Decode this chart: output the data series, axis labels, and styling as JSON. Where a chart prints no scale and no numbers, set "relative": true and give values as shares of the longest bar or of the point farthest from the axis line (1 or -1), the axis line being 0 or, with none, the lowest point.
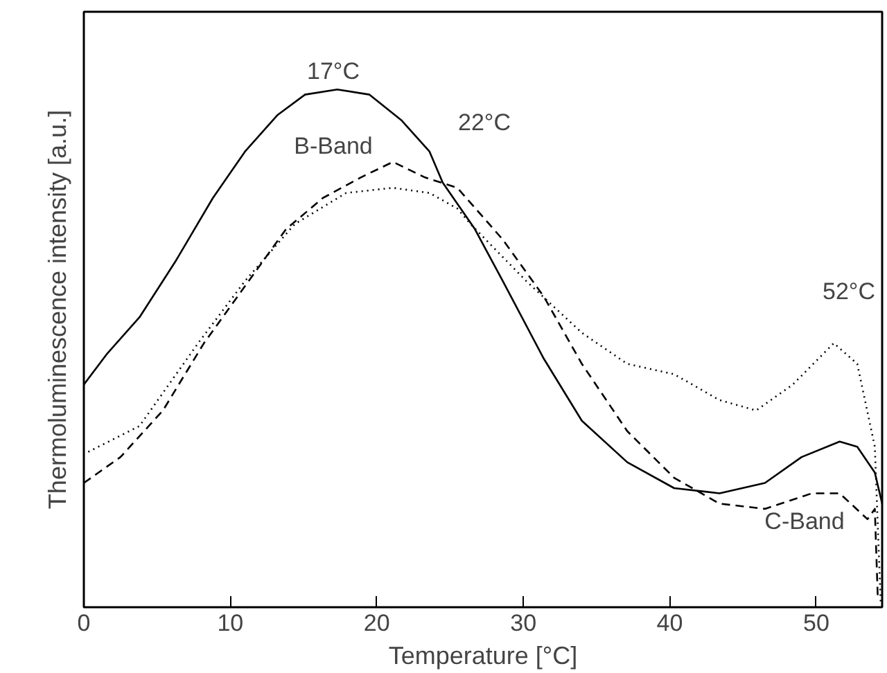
{
  "chart_data": {
    "type": "line",
    "relative": true,
    "xlabel": "Temperature [°C]",
    "ylabel": "Thermoluminescence intensity [a.u.]",
    "xlim": [
      0,
      54.5
    ],
    "xticks": [
      0,
      10,
      20,
      30,
      40,
      50
    ],
    "grid": false,
    "marker": "none",
    "series": [
      {
        "color": "#000000",
        "line_style": "solid",
        "x": [
          0,
          1.6,
          3.8,
          6.3,
          8.8,
          11,
          13.2,
          15.1,
          17.3,
          19.5,
          21.7,
          23.6,
          24.5,
          26.7,
          28.6,
          31.4,
          34,
          37.1,
          40.3,
          43.4,
          46.5,
          49,
          51.6,
          52.8,
          54,
          54.5
        ],
        "values": [
          0.43,
          0.49,
          0.56,
          0.67,
          0.79,
          0.88,
          0.95,
          0.99,
          1.0,
          0.99,
          0.94,
          0.88,
          0.82,
          0.73,
          0.63,
          0.48,
          0.36,
          0.28,
          0.23,
          0.22,
          0.24,
          0.29,
          0.32,
          0.31,
          0.26,
          0.2
        ]
      },
      {
        "color": "#000000",
        "line_style": "dashed",
        "x": [
          0,
          2.5,
          5.4,
          8.2,
          11,
          13.8,
          16.3,
          18.9,
          21.1,
          23.3,
          25.5,
          28.6,
          31.4,
          34,
          37.1,
          40.3,
          43.4,
          46.5,
          49.7,
          51.6,
          53.5,
          54,
          54.2
        ],
        "values": [
          0.24,
          0.29,
          0.38,
          0.51,
          0.62,
          0.73,
          0.79,
          0.83,
          0.86,
          0.83,
          0.81,
          0.71,
          0.6,
          0.47,
          0.34,
          0.25,
          0.2,
          0.19,
          0.22,
          0.22,
          0.17,
          0.19,
          0.02
        ]
      },
      {
        "color": "#000000",
        "line_style": "dotted",
        "x": [
          0.3,
          3.8,
          7.8,
          11,
          14.4,
          17.9,
          21.1,
          23.6,
          25.5,
          26.4,
          30.2,
          34,
          37.1,
          40.3,
          43.4,
          45.9,
          48.4,
          51.2,
          52.8,
          54,
          54.4
        ],
        "values": [
          0.3,
          0.35,
          0.51,
          0.63,
          0.74,
          0.8,
          0.81,
          0.8,
          0.77,
          0.74,
          0.63,
          0.53,
          0.47,
          0.45,
          0.4,
          0.38,
          0.43,
          0.51,
          0.47,
          0.31,
          0.01
        ]
      }
    ],
    "annotations": [
      "17°C",
      "B-Band",
      "22°C",
      "52°C",
      "C-Band"
    ]
  }
}
